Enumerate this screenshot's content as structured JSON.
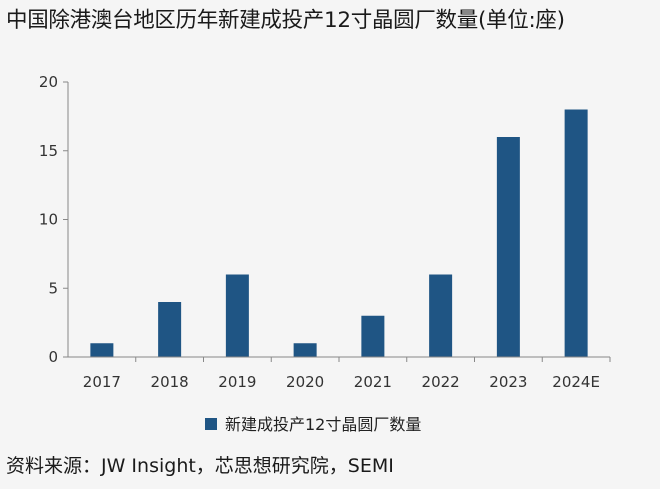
{
  "title": "中国除港澳台地区历年新建成投产12寸晶圆厂数量(单位:座)",
  "source": "资料来源：JW Insight，芯思想研究院，SEMI",
  "colors": {
    "bar": "#1f5584",
    "axis": "#888888",
    "background": "#f5f5f5"
  },
  "chart_data": {
    "type": "bar",
    "title": "中国除港澳台地区历年新建成投产12寸晶圆厂数量(单位:座)",
    "categories": [
      "2017",
      "2018",
      "2019",
      "2020",
      "2021",
      "2022",
      "2023",
      "2024E"
    ],
    "series": [
      {
        "name": "新建成投产12寸晶圆厂数量",
        "values": [
          1,
          4,
          6,
          1,
          3,
          6,
          16,
          18
        ]
      }
    ],
    "xlabel": "",
    "ylabel": "",
    "ylim": [
      0,
      20
    ],
    "yticks": [
      "0",
      "5",
      "10",
      "15",
      "20"
    ],
    "grid": false,
    "legend_position": "bottom"
  }
}
